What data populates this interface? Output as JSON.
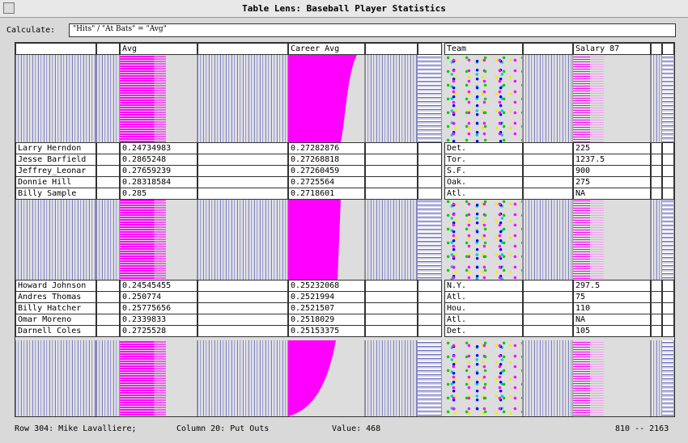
{
  "window_title": "Table Lens: Baseball Player Statistics",
  "calculate": {
    "label": "Calculate:",
    "formula": "\"Hits\" / \"At Bats\" = \"Avg\""
  },
  "columns": [
    "Avg",
    "Career Avg",
    "Team",
    "Salary 87"
  ],
  "groups": [
    [
      [
        "Larry Herndon",
        "0.24734983",
        "0.27282876",
        "Det.",
        "225"
      ],
      [
        "Jesse Barfield",
        "0.2865248",
        "0.27268818",
        "Tor.",
        "1237.5"
      ],
      [
        "Jeffrey_Leonar",
        "0.27659239",
        "0.27260459",
        "S.F.",
        "900"
      ],
      [
        "Donnie Hill",
        "0.28318584",
        "0.2725564",
        "Oak.",
        "275"
      ],
      [
        "Billy Sample",
        "0.285",
        "0.2718601",
        "Atl.",
        "NA"
      ]
    ],
    [
      [
        "Howard Johnson",
        "0.24545455",
        "0.25232068",
        "N.Y.",
        "297.5"
      ],
      [
        "Andres Thomas",
        "0.250774",
        "0.2521994",
        "Atl.",
        "75"
      ],
      [
        "Billy Hatcher",
        "0.25775656",
        "0.2521507",
        "Hou.",
        "110"
      ],
      [
        "Omar Moreno",
        "0.2339833",
        "0.2518029",
        "Atl.",
        "NA"
      ],
      [
        "Darnell Coles",
        "0.2725528",
        "0.25153375",
        "Det.",
        "105"
      ]
    ]
  ],
  "status": {
    "row": "Row 304: Mike Lavalliere;",
    "column": "Column 20: Put Outs",
    "value": "Value: 468",
    "range": "810 -- 2163"
  }
}
